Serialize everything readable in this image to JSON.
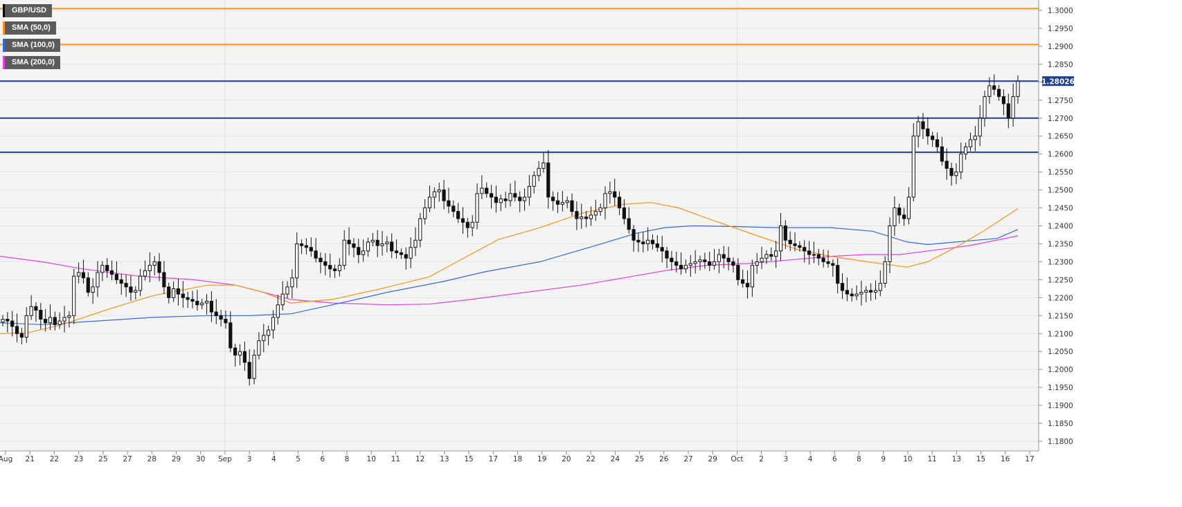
{
  "legend": [
    {
      "label": "GBP/USD",
      "color": "#111111"
    },
    {
      "label": "SMA (50,0)",
      "color": "#f7931a"
    },
    {
      "label": "SMA (100,0)",
      "color": "#2e6bd6"
    },
    {
      "label": "SMA (200,0)",
      "color": "#e83ee8"
    }
  ],
  "chart_data": {
    "type": "candlestick",
    "symbol": "GBP/USD",
    "last_price_label": "1.28026",
    "ylim": [
      1.176,
      1.302
    ],
    "y_ticks": [
      "1.3000",
      "1.2950",
      "1.2900",
      "1.2850",
      "1.2800",
      "1.2750",
      "1.2700",
      "1.2650",
      "1.2600",
      "1.2550",
      "1.2500",
      "1.2450",
      "1.2400",
      "1.2350",
      "1.2300",
      "1.2250",
      "1.2200",
      "1.2150",
      "1.2100",
      "1.2050",
      "1.2000",
      "1.1950",
      "1.1900",
      "1.1850",
      "1.1800"
    ],
    "x_ticks": [
      "Aug",
      "21",
      "22",
      "23",
      "25",
      "27",
      "28",
      "29",
      "30",
      "Sep",
      "3",
      "4",
      "5",
      "6",
      "8",
      "10",
      "11",
      "12",
      "13",
      "15",
      "17",
      "18",
      "19",
      "20",
      "22",
      "24",
      "25",
      "26",
      "27",
      "29",
      "Oct",
      "2",
      "3",
      "4",
      "6",
      "8",
      "9",
      "10",
      "11",
      "13",
      "15",
      "16",
      "17"
    ],
    "horizontal_levels": [
      {
        "value": 1.3005,
        "color": "#f7931a"
      },
      {
        "value": 1.2905,
        "color": "#f7931a"
      },
      {
        "value": 1.2803,
        "color": "#1d3f8f"
      },
      {
        "value": 1.27,
        "color": "#1d3f8f"
      },
      {
        "value": 1.2605,
        "color": "#1d3f8f"
      }
    ],
    "close_series": [
      1.214,
      1.2135,
      1.212,
      1.21,
      1.209,
      1.215,
      1.2175,
      1.2165,
      1.214,
      1.213,
      1.2145,
      1.2125,
      1.2135,
      1.2145,
      1.215,
      1.226,
      1.227,
      1.2255,
      1.2215,
      1.223,
      1.227,
      1.229,
      1.2275,
      1.2265,
      1.225,
      1.224,
      1.223,
      1.2215,
      1.222,
      1.226,
      1.2275,
      1.229,
      1.23,
      1.227,
      1.223,
      1.22,
      1.2225,
      1.221,
      1.22,
      1.2195,
      1.219,
      1.218,
      1.2185,
      1.219,
      1.216,
      1.215,
      1.214,
      1.213,
      1.206,
      1.204,
      1.205,
      1.202,
      1.1975,
      1.204,
      1.208,
      1.2095,
      1.211,
      1.2145,
      1.218,
      1.221,
      1.223,
      1.2255,
      1.235,
      1.2345,
      1.234,
      1.233,
      1.231,
      1.23,
      1.229,
      1.228,
      1.2275,
      1.229,
      1.236,
      1.235,
      1.234,
      1.232,
      1.233,
      1.2355,
      1.236,
      1.2345,
      1.235,
      1.2355,
      1.233,
      1.2325,
      1.232,
      1.231,
      1.234,
      1.236,
      1.242,
      1.245,
      1.248,
      1.2495,
      1.25,
      1.247,
      1.2455,
      1.244,
      1.242,
      1.241,
      1.2395,
      1.241,
      1.249,
      1.2505,
      1.249,
      1.248,
      1.2465,
      1.2475,
      1.247,
      1.249,
      1.248,
      1.247,
      1.248,
      1.251,
      1.254,
      1.256,
      1.2575,
      1.248,
      1.247,
      1.246,
      1.2465,
      1.247,
      1.244,
      1.242,
      1.2425,
      1.242,
      1.243,
      1.244,
      1.245,
      1.249,
      1.2495,
      1.248,
      1.245,
      1.242,
      1.239,
      1.236,
      1.2355,
      1.235,
      1.236,
      1.235,
      1.234,
      1.233,
      1.231,
      1.23,
      1.229,
      1.228,
      1.229,
      1.2295,
      1.23,
      1.2305,
      1.23,
      1.229,
      1.23,
      1.232,
      1.231,
      1.23,
      1.229,
      1.225,
      1.224,
      1.223,
      1.229,
      1.23,
      1.231,
      1.232,
      1.2315,
      1.233,
      1.24,
      1.236,
      1.235,
      1.2345,
      1.234,
      1.233,
      1.232,
      1.232,
      1.231,
      1.23,
      1.2295,
      1.229,
      1.224,
      1.222,
      1.221,
      1.2205,
      1.221,
      1.2215,
      1.222,
      1.2215,
      1.222,
      1.224,
      1.23,
      1.24,
      1.245,
      1.243,
      1.242,
      1.248,
      1.265,
      1.269,
      1.267,
      1.265,
      1.264,
      1.262,
      1.258,
      1.256,
      1.254,
      1.255,
      1.26,
      1.262,
      1.264,
      1.265,
      1.27,
      1.276,
      1.279,
      1.278,
      1.276,
      1.274,
      1.27,
      1.276,
      1.2803
    ],
    "sma_50": [
      [
        0,
        1.21
      ],
      [
        40,
        1.2102
      ],
      [
        90,
        1.2125
      ],
      [
        160,
        1.217
      ],
      [
        220,
        1.2205
      ],
      [
        300,
        1.2235
      ],
      [
        340,
        1.2235
      ],
      [
        380,
        1.2215
      ],
      [
        420,
        1.2185
      ],
      [
        480,
        1.2195
      ],
      [
        550,
        1.2225
      ],
      [
        620,
        1.2258
      ],
      [
        660,
        1.23
      ],
      [
        720,
        1.2362
      ],
      [
        780,
        1.2395
      ],
      [
        840,
        1.2435
      ],
      [
        900,
        1.246
      ],
      [
        940,
        1.2465
      ],
      [
        980,
        1.245
      ],
      [
        1030,
        1.2415
      ],
      [
        1090,
        1.2375
      ],
      [
        1150,
        1.2335
      ],
      [
        1200,
        1.2315
      ],
      [
        1260,
        1.2298
      ],
      [
        1310,
        1.2285
      ],
      [
        1340,
        1.23
      ],
      [
        1380,
        1.234
      ],
      [
        1420,
        1.2385
      ],
      [
        1470,
        1.2448
      ]
    ],
    "sma_100": [
      [
        0,
        1.213
      ],
      [
        60,
        1.2125
      ],
      [
        140,
        1.2135
      ],
      [
        220,
        1.2145
      ],
      [
        300,
        1.215
      ],
      [
        360,
        1.215
      ],
      [
        420,
        1.2155
      ],
      [
        480,
        1.218
      ],
      [
        560,
        1.2215
      ],
      [
        640,
        1.2245
      ],
      [
        700,
        1.2272
      ],
      [
        780,
        1.23
      ],
      [
        860,
        1.2345
      ],
      [
        920,
        1.238
      ],
      [
        960,
        1.2395
      ],
      [
        1000,
        1.24
      ],
      [
        1060,
        1.2398
      ],
      [
        1120,
        1.2395
      ],
      [
        1200,
        1.2395
      ],
      [
        1260,
        1.2385
      ],
      [
        1310,
        1.2355
      ],
      [
        1340,
        1.2348
      ],
      [
        1380,
        1.2355
      ],
      [
        1440,
        1.2365
      ],
      [
        1470,
        1.239
      ]
    ],
    "sma_200": [
      [
        0,
        1.2315
      ],
      [
        60,
        1.23
      ],
      [
        120,
        1.228
      ],
      [
        200,
        1.226
      ],
      [
        280,
        1.225
      ],
      [
        340,
        1.2235
      ],
      [
        380,
        1.2215
      ],
      [
        420,
        1.2195
      ],
      [
        480,
        1.2185
      ],
      [
        560,
        1.218
      ],
      [
        620,
        1.2182
      ],
      [
        680,
        1.2195
      ],
      [
        760,
        1.2215
      ],
      [
        840,
        1.2235
      ],
      [
        900,
        1.2255
      ],
      [
        960,
        1.2275
      ],
      [
        1020,
        1.229
      ],
      [
        1080,
        1.2295
      ],
      [
        1140,
        1.2305
      ],
      [
        1200,
        1.2315
      ],
      [
        1250,
        1.232
      ],
      [
        1300,
        1.232
      ],
      [
        1340,
        1.233
      ],
      [
        1400,
        1.2345
      ],
      [
        1470,
        1.2372
      ]
    ]
  }
}
